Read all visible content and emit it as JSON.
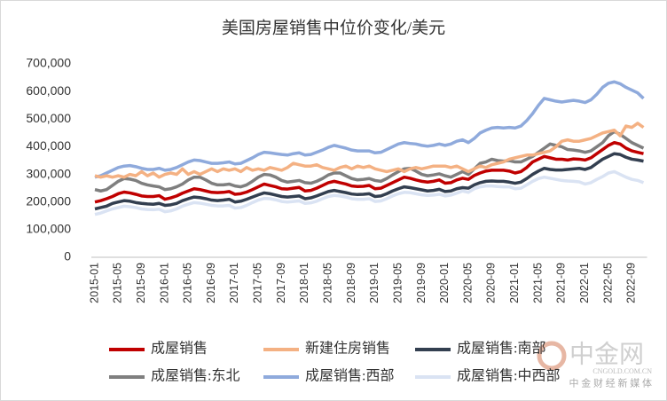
{
  "chart_data": {
    "type": "line",
    "title": "美国房屋销售中位价变化/美元",
    "categories": [
      "2015-01",
      null,
      null,
      null,
      "2015-05",
      null,
      null,
      null,
      "2015-09",
      null,
      null,
      null,
      "2016-01",
      null,
      null,
      null,
      "2016-05",
      null,
      null,
      null,
      "2016-09",
      null,
      null,
      null,
      "2017-01",
      null,
      null,
      null,
      "2017-05",
      null,
      null,
      null,
      "2017-09",
      null,
      null,
      null,
      "2018-01",
      null,
      null,
      null,
      "2018-05",
      null,
      null,
      null,
      "2018-09",
      null,
      null,
      null,
      "2019-01",
      null,
      null,
      null,
      "2019-05",
      null,
      null,
      null,
      "2019-09",
      null,
      null,
      null,
      "2020-01",
      null,
      null,
      null,
      "2020-05",
      null,
      null,
      null,
      "2020-09",
      null,
      null,
      null,
      "2021-01",
      null,
      null,
      null,
      "2021-05",
      null,
      null,
      null,
      "2021-09",
      null,
      null,
      null,
      "2022-01",
      null,
      null,
      null,
      "2022-05",
      null,
      null,
      null,
      "2022-09",
      null,
      null
    ],
    "ylim": [
      0,
      700000
    ],
    "yticks": [
      0,
      {
        "value": 100000,
        "label": "100,000"
      },
      {
        "value": 200000,
        "label": "200,000"
      },
      {
        "value": 300000,
        "label": "300,000"
      },
      {
        "value": 400000,
        "label": "400,000"
      },
      {
        "value": 500000,
        "label": "500,000"
      },
      {
        "value": 600000,
        "label": "600,000"
      },
      {
        "value": 700000,
        "label": "700,000"
      }
    ],
    "grid": false,
    "series": [
      {
        "name": "成屋销售",
        "color": "#c00000",
        "values": [
          200000,
          205000,
          212000,
          220000,
          230000,
          236000,
          233000,
          228000,
          222000,
          220000,
          220000,
          223000,
          210000,
          215000,
          222000,
          232000,
          240000,
          248000,
          245000,
          240000,
          235000,
          234000,
          235000,
          238000,
          228000,
          230000,
          236000,
          245000,
          255000,
          265000,
          260000,
          255000,
          248000,
          247000,
          250000,
          253000,
          240000,
          242000,
          250000,
          260000,
          270000,
          275000,
          270000,
          265000,
          258000,
          256000,
          257000,
          260000,
          248000,
          250000,
          260000,
          270000,
          280000,
          290000,
          286000,
          280000,
          275000,
          272000,
          275000,
          280000,
          268000,
          270000,
          280000,
          286000,
          282000,
          296000,
          305000,
          312000,
          315000,
          315000,
          315000,
          312000,
          305000,
          310000,
          325000,
          345000,
          355000,
          365000,
          360000,
          355000,
          355000,
          352000,
          356000,
          355000,
          352000,
          360000,
          375000,
          390000,
          405000,
          415000,
          410000,
          395000,
          385000,
          380000,
          375000
        ]
      },
      {
        "name": "新建住房销售",
        "color": "#f4b183",
        "values": [
          295000,
          290000,
          295000,
          290000,
          295000,
          290000,
          300000,
          295000,
          310000,
          295000,
          305000,
          290000,
          300000,
          305000,
          300000,
          320000,
          300000,
          310000,
          300000,
          310000,
          320000,
          310000,
          320000,
          315000,
          320000,
          310000,
          325000,
          315000,
          320000,
          315000,
          325000,
          320000,
          315000,
          325000,
          340000,
          335000,
          330000,
          330000,
          335000,
          325000,
          320000,
          315000,
          325000,
          330000,
          320000,
          330000,
          325000,
          330000,
          320000,
          315000,
          310000,
          315000,
          320000,
          310000,
          320000,
          325000,
          320000,
          325000,
          330000,
          330000,
          330000,
          325000,
          330000,
          320000,
          310000,
          320000,
          330000,
          325000,
          335000,
          340000,
          345000,
          355000,
          360000,
          365000,
          370000,
          370000,
          375000,
          380000,
          385000,
          400000,
          420000,
          425000,
          420000,
          420000,
          425000,
          430000,
          440000,
          450000,
          455000,
          460000,
          440000,
          475000,
          470000,
          485000,
          470000
        ]
      },
      {
        "name": "成屋销售:南部",
        "color": "#333f50",
        "values": [
          175000,
          180000,
          185000,
          195000,
          200000,
          205000,
          203000,
          198000,
          195000,
          193000,
          192000,
          195000,
          188000,
          190000,
          195000,
          205000,
          212000,
          218000,
          216000,
          212000,
          207000,
          205000,
          207000,
          210000,
          200000,
          203000,
          210000,
          218000,
          226000,
          233000,
          230000,
          225000,
          220000,
          218000,
          220000,
          222000,
          212000,
          215000,
          222000,
          230000,
          238000,
          242000,
          238000,
          234000,
          229000,
          227000,
          228000,
          230000,
          220000,
          222000,
          230000,
          240000,
          248000,
          255000,
          252000,
          248000,
          244000,
          240000,
          242000,
          246000,
          238000,
          240000,
          248000,
          252000,
          250000,
          262000,
          270000,
          275000,
          276000,
          275000,
          275000,
          272000,
          268000,
          272000,
          285000,
          300000,
          312000,
          322000,
          318000,
          316000,
          316000,
          318000,
          320000,
          322000,
          318000,
          325000,
          340000,
          355000,
          365000,
          375000,
          372000,
          362000,
          355000,
          352000,
          348000
        ]
      },
      {
        "name": "成屋销售:东北",
        "color": "#7f7f7f",
        "values": [
          245000,
          240000,
          245000,
          260000,
          275000,
          285000,
          283000,
          278000,
          268000,
          262000,
          258000,
          255000,
          245000,
          248000,
          255000,
          265000,
          280000,
          290000,
          290000,
          280000,
          268000,
          262000,
          262000,
          265000,
          258000,
          255000,
          262000,
          275000,
          290000,
          300000,
          298000,
          290000,
          278000,
          272000,
          275000,
          278000,
          270000,
          268000,
          275000,
          285000,
          298000,
          305000,
          305000,
          295000,
          285000,
          280000,
          282000,
          285000,
          278000,
          275000,
          285000,
          298000,
          310000,
          320000,
          322000,
          312000,
          300000,
          295000,
          298000,
          302000,
          295000,
          290000,
          300000,
          310000,
          300000,
          320000,
          340000,
          345000,
          355000,
          350000,
          348000,
          350000,
          345000,
          345000,
          355000,
          365000,
          380000,
          395000,
          410000,
          405000,
          400000,
          390000,
          388000,
          385000,
          380000,
          385000,
          400000,
          415000,
          440000,
          455000,
          445000,
          430000,
          415000,
          405000,
          395000
        ]
      },
      {
        "name": "成屋销售:西部",
        "color": "#8faadc",
        "values": [
          290000,
          295000,
          305000,
          315000,
          325000,
          330000,
          332000,
          328000,
          322000,
          318000,
          318000,
          322000,
          315000,
          318000,
          325000,
          335000,
          345000,
          352000,
          350000,
          345000,
          340000,
          340000,
          342000,
          345000,
          338000,
          340000,
          350000,
          360000,
          372000,
          380000,
          378000,
          375000,
          372000,
          370000,
          375000,
          378000,
          370000,
          372000,
          380000,
          388000,
          398000,
          405000,
          400000,
          395000,
          388000,
          385000,
          385000,
          385000,
          378000,
          380000,
          390000,
          400000,
          410000,
          415000,
          412000,
          410000,
          405000,
          402000,
          405000,
          410000,
          405000,
          410000,
          420000,
          425000,
          415000,
          430000,
          450000,
          460000,
          468000,
          470000,
          468000,
          470000,
          468000,
          475000,
          495000,
          520000,
          550000,
          575000,
          570000,
          565000,
          562000,
          565000,
          568000,
          565000,
          560000,
          570000,
          590000,
          615000,
          630000,
          635000,
          628000,
          615000,
          605000,
          595000,
          575000
        ]
      },
      {
        "name": "成屋销售:中西部",
        "color": "#dae3f3",
        "values": [
          155000,
          160000,
          168000,
          175000,
          180000,
          185000,
          183000,
          180000,
          175000,
          173000,
          172000,
          174000,
          165000,
          168000,
          175000,
          185000,
          192000,
          198000,
          196000,
          192000,
          188000,
          186000,
          186000,
          188000,
          178000,
          180000,
          188000,
          198000,
          207000,
          213000,
          212000,
          208000,
          202000,
          200000,
          202000,
          204000,
          195000,
          197000,
          203000,
          212000,
          220000,
          224000,
          222000,
          218000,
          212000,
          210000,
          210000,
          212000,
          202000,
          204000,
          212000,
          222000,
          230000,
          235000,
          234000,
          230000,
          226000,
          224000,
          225000,
          228000,
          222000,
          225000,
          232000,
          240000,
          235000,
          248000,
          255000,
          258000,
          258000,
          256000,
          255000,
          255000,
          248000,
          250000,
          262000,
          275000,
          285000,
          290000,
          286000,
          282000,
          278000,
          276000,
          275000,
          273000,
          265000,
          270000,
          282000,
          292000,
          305000,
          310000,
          300000,
          290000,
          282000,
          278000,
          270000
        ]
      }
    ],
    "watermark": {
      "logo": "中金网",
      "site": "CNGOLD.COM.CN",
      "slogan": "中 金 财 经 新 媒 体"
    }
  }
}
